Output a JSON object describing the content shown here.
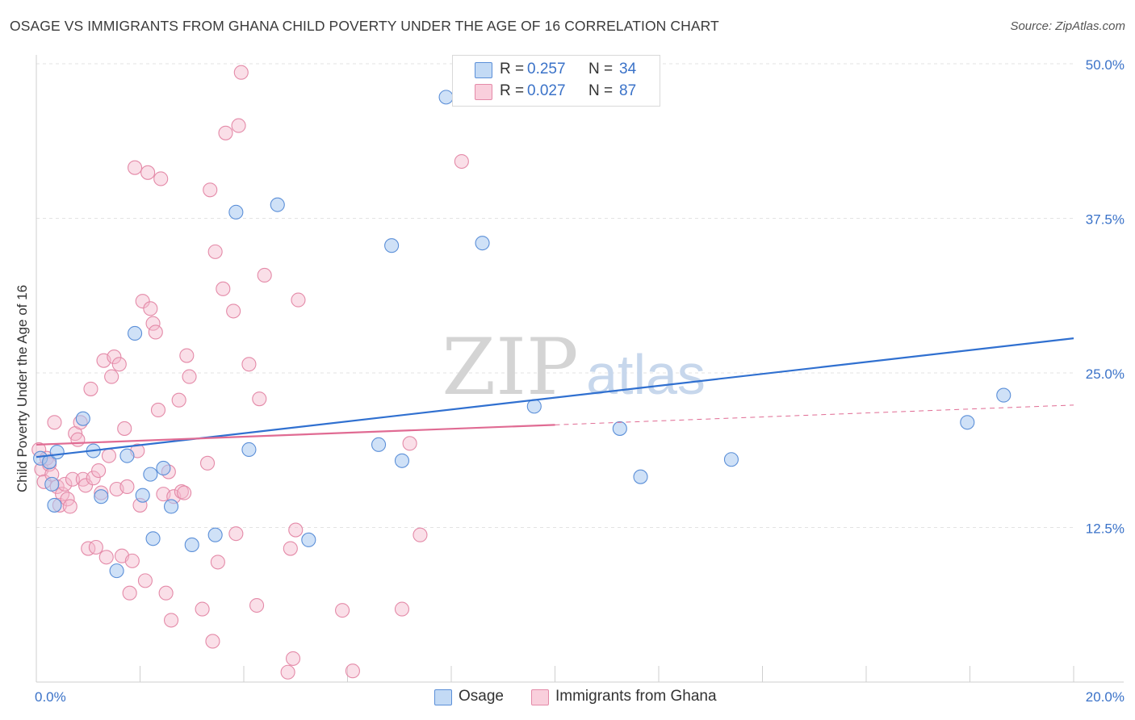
{
  "header": {
    "title": "OSAGE VS IMMIGRANTS FROM GHANA CHILD POVERTY UNDER THE AGE OF 16 CORRELATION CHART",
    "source": "Source: ZipAtlas.com"
  },
  "watermark": {
    "zip": "ZIP",
    "atlas": "atlas"
  },
  "legend_top": [
    {
      "r_label": "R =",
      "r_value": "0.257",
      "n_label": "N =",
      "n_value": "34",
      "color": "#a8c8f0"
    },
    {
      "r_label": "R =",
      "r_value": "0.027",
      "n_label": "N =",
      "n_value": "87",
      "color": "#f5b8cc"
    }
  ],
  "legend_bottom": [
    {
      "label": "Osage",
      "color": "#a8c8f0"
    },
    {
      "label": "Immigrants from Ghana",
      "color": "#f5b8cc"
    }
  ],
  "chart_data": {
    "type": "scatter",
    "title": "OSAGE VS IMMIGRANTS FROM GHANA CHILD POVERTY UNDER THE AGE OF 16 CORRELATION CHART",
    "xlabel": "",
    "ylabel": "Child Poverty Under the Age of 16",
    "xlim": [
      0,
      20
    ],
    "ylim": [
      0,
      50
    ],
    "x_tick_labels": [
      {
        "value": 0,
        "label": "0.0%"
      },
      {
        "value": 20,
        "label": "20.0%"
      }
    ],
    "y_tick_labels": [
      {
        "value": 12.5,
        "label": "12.5%"
      },
      {
        "value": 25,
        "label": "25.0%"
      },
      {
        "value": 37.5,
        "label": "37.5%"
      },
      {
        "value": 50,
        "label": "50.0%"
      }
    ],
    "grid": true,
    "legend_position": "top-center",
    "series": [
      {
        "name": "Osage",
        "color": "#a8c8f0",
        "edge": "#5b8fd8",
        "line_color": "#3070d0",
        "trend": {
          "x": [
            0,
            20
          ],
          "y": [
            18.2,
            27.8
          ]
        },
        "points": [
          [
            0.08,
            18.1
          ],
          [
            0.25,
            17.8
          ],
          [
            0.4,
            18.6
          ],
          [
            0.3,
            16.0
          ],
          [
            0.35,
            14.3
          ],
          [
            0.9,
            21.3
          ],
          [
            1.1,
            18.7
          ],
          [
            1.25,
            15.0
          ],
          [
            1.55,
            9.0
          ],
          [
            1.75,
            18.3
          ],
          [
            1.9,
            28.2
          ],
          [
            2.05,
            15.1
          ],
          [
            2.2,
            16.8
          ],
          [
            2.25,
            11.6
          ],
          [
            2.45,
            17.3
          ],
          [
            2.6,
            14.2
          ],
          [
            3.0,
            11.1
          ],
          [
            3.45,
            11.9
          ],
          [
            3.85,
            38.0
          ],
          [
            4.1,
            18.8
          ],
          [
            4.65,
            38.6
          ],
          [
            5.25,
            11.5
          ],
          [
            6.6,
            19.2
          ],
          [
            6.85,
            35.3
          ],
          [
            7.05,
            17.9
          ],
          [
            7.9,
            47.3
          ],
          [
            8.6,
            35.5
          ],
          [
            9.6,
            22.3
          ],
          [
            11.25,
            20.5
          ],
          [
            11.65,
            16.6
          ],
          [
            13.4,
            18.0
          ],
          [
            17.95,
            21.0
          ],
          [
            18.65,
            23.2
          ]
        ]
      },
      {
        "name": "Immigrants from Ghana",
        "color": "#f5b8cc",
        "edge": "#e48aa8",
        "line_color": "#e06b93",
        "trend": {
          "x": [
            0,
            20
          ],
          "y": [
            19.2,
            22.4
          ],
          "solid_until": 10.0
        },
        "points": [
          [
            0.05,
            18.8
          ],
          [
            0.1,
            17.2
          ],
          [
            0.15,
            16.2
          ],
          [
            0.2,
            18.1
          ],
          [
            0.25,
            17.6
          ],
          [
            0.3,
            16.8
          ],
          [
            0.35,
            21.0
          ],
          [
            0.4,
            15.8
          ],
          [
            0.45,
            14.3
          ],
          [
            0.5,
            15.2
          ],
          [
            0.55,
            16.0
          ],
          [
            0.6,
            14.8
          ],
          [
            0.65,
            14.2
          ],
          [
            0.7,
            16.4
          ],
          [
            0.75,
            20.1
          ],
          [
            0.8,
            19.6
          ],
          [
            0.85,
            21.0
          ],
          [
            0.9,
            16.4
          ],
          [
            0.95,
            15.9
          ],
          [
            1.0,
            10.8
          ],
          [
            1.05,
            23.7
          ],
          [
            1.1,
            16.5
          ],
          [
            1.15,
            10.9
          ],
          [
            1.2,
            17.1
          ],
          [
            1.25,
            15.3
          ],
          [
            1.3,
            26.0
          ],
          [
            1.35,
            10.1
          ],
          [
            1.4,
            18.3
          ],
          [
            1.45,
            24.7
          ],
          [
            1.5,
            26.3
          ],
          [
            1.55,
            15.6
          ],
          [
            1.6,
            25.7
          ],
          [
            1.65,
            10.2
          ],
          [
            1.7,
            20.5
          ],
          [
            1.75,
            15.8
          ],
          [
            1.8,
            7.2
          ],
          [
            1.85,
            9.8
          ],
          [
            1.9,
            41.6
          ],
          [
            1.95,
            18.7
          ],
          [
            2.0,
            14.3
          ],
          [
            2.05,
            30.8
          ],
          [
            2.1,
            8.2
          ],
          [
            2.15,
            41.2
          ],
          [
            2.2,
            30.2
          ],
          [
            2.25,
            29.0
          ],
          [
            2.3,
            28.3
          ],
          [
            2.35,
            22.0
          ],
          [
            2.4,
            40.7
          ],
          [
            2.45,
            15.2
          ],
          [
            2.5,
            7.2
          ],
          [
            2.55,
            17.0
          ],
          [
            2.6,
            5.0
          ],
          [
            2.65,
            15.0
          ],
          [
            2.75,
            22.8
          ],
          [
            2.8,
            15.4
          ],
          [
            2.85,
            15.3
          ],
          [
            2.9,
            26.4
          ],
          [
            2.95,
            24.7
          ],
          [
            3.2,
            5.9
          ],
          [
            3.3,
            17.7
          ],
          [
            3.35,
            39.8
          ],
          [
            3.4,
            3.3
          ],
          [
            3.45,
            34.8
          ],
          [
            3.5,
            9.7
          ],
          [
            3.6,
            31.8
          ],
          [
            3.65,
            44.4
          ],
          [
            3.8,
            30.0
          ],
          [
            3.85,
            12.0
          ],
          [
            3.9,
            45.0
          ],
          [
            3.95,
            49.3
          ],
          [
            4.1,
            25.7
          ],
          [
            4.25,
            6.2
          ],
          [
            4.3,
            22.9
          ],
          [
            4.4,
            32.9
          ],
          [
            4.85,
            0.8
          ],
          [
            4.9,
            10.8
          ],
          [
            4.95,
            1.9
          ],
          [
            5.0,
            12.3
          ],
          [
            5.05,
            30.9
          ],
          [
            5.9,
            5.8
          ],
          [
            6.1,
            0.9
          ],
          [
            7.05,
            5.9
          ],
          [
            7.2,
            19.3
          ],
          [
            7.4,
            11.9
          ],
          [
            8.2,
            42.1
          ]
        ]
      }
    ]
  }
}
